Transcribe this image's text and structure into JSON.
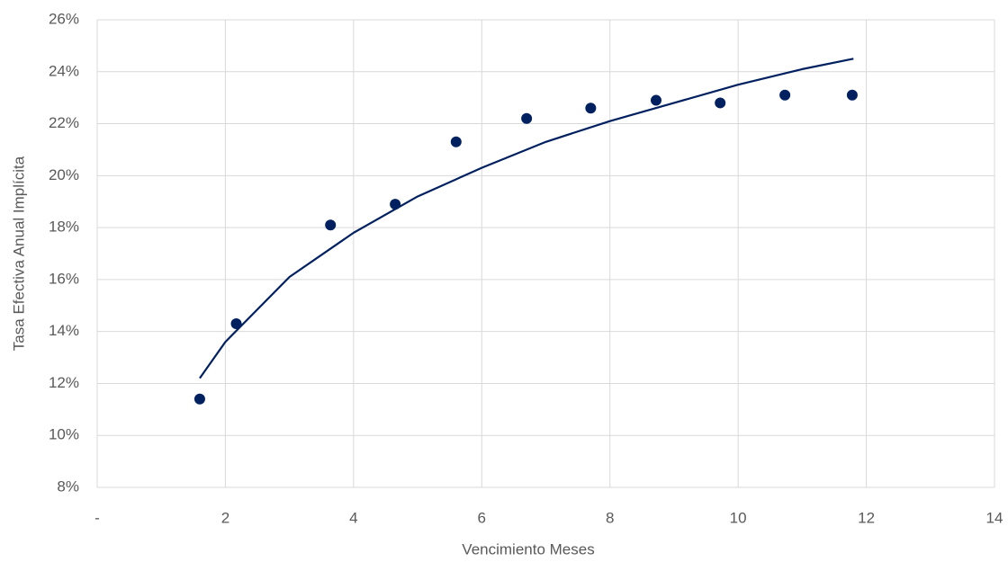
{
  "chart_data": {
    "type": "scatter",
    "x_label": "Vencimiento Meses",
    "y_label": "Tasa Efectiva Anual Implícita",
    "xlim": [
      0,
      14
    ],
    "xticks": [
      {
        "value": 0,
        "label": "-"
      },
      2,
      4,
      6,
      8,
      10,
      12,
      14
    ],
    "ylim": [
      8,
      26
    ],
    "yticks": [
      {
        "value": 8,
        "label": "8%"
      },
      {
        "value": 10,
        "label": "10%"
      },
      {
        "value": 12,
        "label": "12%"
      },
      {
        "value": 14,
        "label": "14%"
      },
      {
        "value": 16,
        "label": "16%"
      },
      {
        "value": 18,
        "label": "18%"
      },
      {
        "value": 20,
        "label": "20%"
      },
      {
        "value": 22,
        "label": "22%"
      },
      {
        "value": 24,
        "label": "24%"
      },
      {
        "value": 26,
        "label": "26%"
      }
    ],
    "grid": true,
    "series": [
      {
        "mode": "markers",
        "color": "#002060",
        "x": [
          1.6,
          2.17,
          3.64,
          4.65,
          5.6,
          6.7,
          7.7,
          8.72,
          9.72,
          10.73,
          11.78
        ],
        "values": [
          11.4,
          14.3,
          18.1,
          18.9,
          21.3,
          22.2,
          22.6,
          22.9,
          22.8,
          23.1,
          23.1
        ]
      },
      {
        "mode": "line",
        "color": "#002060",
        "x": [
          1.6,
          2,
          3,
          4,
          5,
          6,
          7,
          8,
          9,
          10,
          11,
          11.8
        ],
        "values": [
          12.2,
          13.6,
          16.1,
          17.8,
          19.2,
          20.3,
          21.3,
          22.1,
          22.8,
          23.5,
          24.1,
          24.5
        ]
      }
    ]
  }
}
